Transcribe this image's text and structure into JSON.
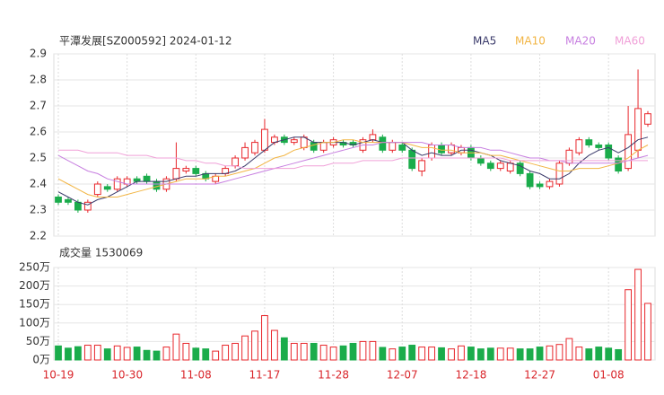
{
  "chart_data": {
    "type": "candlestick",
    "title": "平潭发展[SZ000592] 2024-01-12",
    "categories": [
      "10-19",
      null,
      null,
      null,
      null,
      null,
      null,
      "10-30",
      null,
      null,
      null,
      null,
      null,
      null,
      "11-08",
      null,
      null,
      null,
      null,
      null,
      null,
      "11-17",
      null,
      null,
      null,
      null,
      null,
      null,
      "11-28",
      null,
      null,
      null,
      null,
      null,
      null,
      "12-07",
      null,
      null,
      null,
      null,
      null,
      null,
      "12-18",
      null,
      null,
      null,
      null,
      null,
      null,
      "12-27",
      null,
      null,
      null,
      null,
      null,
      null,
      "01-08",
      null,
      null,
      null,
      null
    ],
    "open": [
      2.35,
      2.34,
      2.33,
      2.3,
      2.36,
      2.39,
      2.38,
      2.4,
      2.42,
      2.43,
      2.41,
      2.38,
      2.42,
      2.45,
      2.46,
      2.44,
      2.41,
      2.44,
      2.47,
      2.5,
      2.52,
      2.53,
      2.56,
      2.58,
      2.56,
      2.54,
      2.56,
      2.53,
      2.55,
      2.56,
      2.56,
      2.53,
      2.57,
      2.58,
      2.53,
      2.55,
      2.53,
      2.45,
      2.5,
      2.55,
      2.52,
      2.52,
      2.54,
      2.5,
      2.48,
      2.46,
      2.45,
      2.48,
      2.44,
      2.4,
      2.39,
      2.4,
      2.48,
      2.52,
      2.57,
      2.55,
      2.55,
      2.5,
      2.46,
      2.53,
      2.63
    ],
    "high": [
      2.36,
      2.35,
      2.34,
      2.34,
      2.41,
      2.4,
      2.43,
      2.43,
      2.43,
      2.44,
      2.42,
      2.43,
      2.56,
      2.47,
      2.47,
      2.45,
      2.44,
      2.47,
      2.51,
      2.56,
      2.57,
      2.65,
      2.59,
      2.59,
      2.58,
      2.59,
      2.57,
      2.57,
      2.58,
      2.57,
      2.57,
      2.58,
      2.61,
      2.59,
      2.57,
      2.56,
      2.54,
      2.5,
      2.56,
      2.56,
      2.56,
      2.55,
      2.55,
      2.51,
      2.49,
      2.49,
      2.49,
      2.49,
      2.45,
      2.41,
      2.42,
      2.49,
      2.54,
      2.58,
      2.58,
      2.56,
      2.56,
      2.51,
      2.7,
      2.84,
      2.68
    ],
    "low": [
      2.32,
      2.32,
      2.29,
      2.29,
      2.35,
      2.37,
      2.37,
      2.39,
      2.4,
      2.4,
      2.37,
      2.37,
      2.41,
      2.44,
      2.43,
      2.41,
      2.4,
      2.43,
      2.46,
      2.49,
      2.51,
      2.52,
      2.55,
      2.55,
      2.55,
      2.53,
      2.52,
      2.52,
      2.54,
      2.54,
      2.54,
      2.52,
      2.56,
      2.52,
      2.52,
      2.52,
      2.45,
      2.43,
      2.49,
      2.51,
      2.51,
      2.51,
      2.49,
      2.47,
      2.45,
      2.45,
      2.44,
      2.43,
      2.38,
      2.38,
      2.38,
      2.39,
      2.47,
      2.51,
      2.54,
      2.53,
      2.49,
      2.44,
      2.45,
      2.5,
      2.62
    ],
    "close": [
      2.33,
      2.33,
      2.3,
      2.33,
      2.4,
      2.38,
      2.42,
      2.42,
      2.41,
      2.41,
      2.38,
      2.42,
      2.46,
      2.46,
      2.44,
      2.42,
      2.43,
      2.46,
      2.5,
      2.54,
      2.56,
      2.61,
      2.58,
      2.56,
      2.57,
      2.58,
      2.53,
      2.56,
      2.57,
      2.55,
      2.55,
      2.57,
      2.59,
      2.53,
      2.56,
      2.53,
      2.46,
      2.49,
      2.55,
      2.52,
      2.55,
      2.54,
      2.5,
      2.48,
      2.46,
      2.48,
      2.48,
      2.44,
      2.39,
      2.39,
      2.41,
      2.48,
      2.53,
      2.57,
      2.55,
      2.54,
      2.5,
      2.45,
      2.59,
      2.69,
      2.67
    ],
    "up_color": "#e8262b",
    "down_color": "#1aac4b",
    "ylim": [
      2.2,
      2.9
    ],
    "yticks": [
      2.2,
      2.3,
      2.4,
      2.5,
      2.6,
      2.7,
      2.8,
      2.9
    ],
    "series": [
      {
        "name": "MA5",
        "color": "#3b3b6b",
        "values": [
          2.37,
          2.35,
          2.33,
          2.32,
          2.34,
          2.35,
          2.37,
          2.39,
          2.41,
          2.41,
          2.41,
          2.41,
          2.42,
          2.43,
          2.43,
          2.44,
          2.44,
          2.44,
          2.45,
          2.47,
          2.5,
          2.53,
          2.56,
          2.57,
          2.58,
          2.58,
          2.56,
          2.56,
          2.56,
          2.56,
          2.55,
          2.56,
          2.57,
          2.56,
          2.56,
          2.56,
          2.53,
          2.51,
          2.52,
          2.51,
          2.51,
          2.53,
          2.53,
          2.52,
          2.51,
          2.49,
          2.48,
          2.47,
          2.45,
          2.44,
          2.42,
          2.42,
          2.44,
          2.48,
          2.51,
          2.53,
          2.54,
          2.52,
          2.54,
          2.57,
          2.58
        ]
      },
      {
        "name": "MA10",
        "color": "#f2b544",
        "values": [
          2.42,
          2.4,
          2.38,
          2.36,
          2.35,
          2.35,
          2.35,
          2.36,
          2.37,
          2.38,
          2.39,
          2.4,
          2.41,
          2.42,
          2.42,
          2.42,
          2.43,
          2.43,
          2.44,
          2.45,
          2.46,
          2.48,
          2.5,
          2.51,
          2.53,
          2.54,
          2.55,
          2.56,
          2.56,
          2.57,
          2.57,
          2.56,
          2.56,
          2.56,
          2.56,
          2.56,
          2.55,
          2.54,
          2.54,
          2.53,
          2.53,
          2.52,
          2.52,
          2.52,
          2.51,
          2.51,
          2.5,
          2.49,
          2.48,
          2.47,
          2.46,
          2.45,
          2.45,
          2.46,
          2.46,
          2.46,
          2.47,
          2.48,
          2.5,
          2.53,
          2.55
        ]
      },
      {
        "name": "MA20",
        "color": "#c77fe0",
        "values": [
          2.51,
          2.49,
          2.47,
          2.45,
          2.44,
          2.42,
          2.41,
          2.4,
          2.4,
          2.4,
          2.4,
          2.4,
          2.4,
          2.4,
          2.4,
          2.4,
          2.4,
          2.41,
          2.42,
          2.43,
          2.44,
          2.45,
          2.46,
          2.47,
          2.48,
          2.49,
          2.5,
          2.51,
          2.52,
          2.53,
          2.54,
          2.55,
          2.55,
          2.56,
          2.56,
          2.56,
          2.56,
          2.56,
          2.55,
          2.55,
          2.55,
          2.54,
          2.54,
          2.54,
          2.53,
          2.53,
          2.52,
          2.51,
          2.5,
          2.5,
          2.49,
          2.49,
          2.48,
          2.48,
          2.48,
          2.48,
          2.48,
          2.48,
          2.49,
          2.5,
          2.51
        ]
      },
      {
        "name": "MA60",
        "color": "#f0a0d8",
        "values": [
          2.53,
          2.53,
          2.53,
          2.52,
          2.52,
          2.52,
          2.52,
          2.51,
          2.51,
          2.51,
          2.5,
          2.5,
          2.5,
          2.49,
          2.49,
          2.48,
          2.48,
          2.47,
          2.47,
          2.46,
          2.46,
          2.46,
          2.46,
          2.46,
          2.46,
          2.47,
          2.47,
          2.47,
          2.48,
          2.48,
          2.48,
          2.49,
          2.49,
          2.49,
          2.49,
          2.5,
          2.5,
          2.5,
          2.5,
          2.5,
          2.5,
          2.5,
          2.5,
          2.5,
          2.5,
          2.5,
          2.49,
          2.49,
          2.49,
          2.49,
          2.49,
          2.49,
          2.49,
          2.49,
          2.49,
          2.49,
          2.49,
          2.49,
          2.49,
          2.49,
          2.49
        ]
      }
    ],
    "volume_label": "成交量 1530069",
    "volume": [
      38,
      32,
      36,
      40,
      40,
      30,
      38,
      34,
      35,
      26,
      24,
      35,
      70,
      45,
      32,
      30,
      24,
      40,
      45,
      65,
      78,
      120,
      80,
      60,
      45,
      45,
      45,
      40,
      35,
      38,
      45,
      50,
      50,
      34,
      30,
      35,
      40,
      35,
      35,
      33,
      30,
      38,
      35,
      30,
      32,
      32,
      32,
      30,
      30,
      35,
      38,
      42,
      58,
      35,
      30,
      35,
      32,
      28,
      190,
      245,
      153
    ],
    "vlim": [
      0,
      250
    ],
    "vticks": [
      {
        "value": 0,
        "label": "0万"
      },
      {
        "value": 50,
        "label": "50万"
      },
      {
        "value": 100,
        "label": "100万"
      },
      {
        "value": 150,
        "label": "150万"
      },
      {
        "value": 200,
        "label": "200万"
      },
      {
        "value": 250,
        "label": "250万"
      }
    ],
    "grid": true
  }
}
